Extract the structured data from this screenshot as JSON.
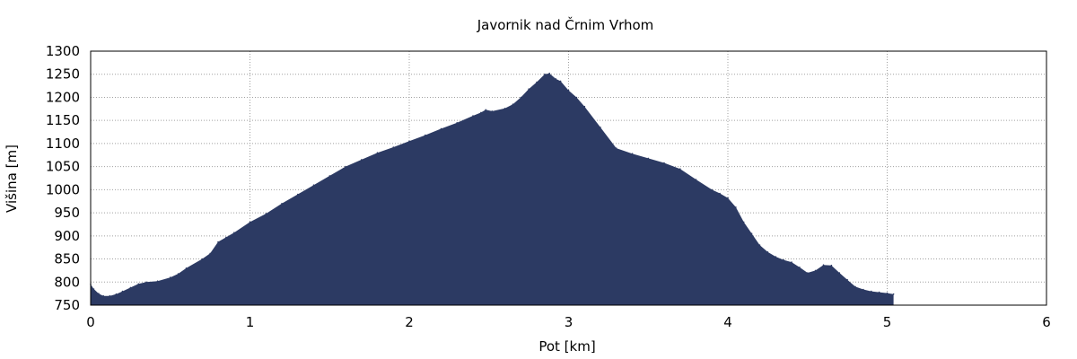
{
  "chart_data": {
    "type": "area",
    "title": "Javornik nad Črnim Vrhom",
    "xlabel": "Pot [km]",
    "ylabel": "Višina [m]",
    "xlim": [
      0,
      6
    ],
    "ylim": [
      750,
      1300
    ],
    "x_ticks": [
      "0",
      "1",
      "2",
      "3",
      "4",
      "5",
      "6"
    ],
    "y_ticks": [
      "750",
      "800",
      "850",
      "900",
      "950",
      "1000",
      "1050",
      "1100",
      "1150",
      "1200",
      "1250",
      "1300"
    ],
    "grid": true,
    "fill_color": "#2c3a63",
    "x": [
      0,
      0.02,
      0.05,
      0.08,
      0.12,
      0.16,
      0.2,
      0.25,
      0.3,
      0.35,
      0.42,
      0.5,
      0.55,
      0.6,
      0.7,
      0.75,
      0.8,
      0.85,
      0.9,
      1.0,
      1.1,
      1.2,
      1.3,
      1.4,
      1.5,
      1.6,
      1.7,
      1.8,
      1.9,
      2.0,
      2.1,
      2.2,
      2.3,
      2.4,
      2.45,
      2.48,
      2.52,
      2.6,
      2.65,
      2.7,
      2.75,
      2.8,
      2.85,
      2.88,
      2.92,
      2.95,
      3.0,
      3.05,
      3.1,
      3.2,
      3.3,
      3.4,
      3.5,
      3.6,
      3.7,
      3.8,
      3.9,
      3.95,
      4.0,
      4.05,
      4.1,
      4.15,
      4.2,
      4.25,
      4.3,
      4.35,
      4.4,
      4.45,
      4.5,
      4.55,
      4.6,
      4.65,
      4.7,
      4.75,
      4.8,
      4.85,
      4.9,
      4.95,
      5.0,
      5.04
    ],
    "y": [
      795,
      785,
      775,
      770,
      770,
      774,
      780,
      788,
      796,
      800,
      802,
      810,
      818,
      830,
      850,
      862,
      887,
      897,
      907,
      930,
      948,
      970,
      990,
      1010,
      1030,
      1050,
      1065,
      1080,
      1092,
      1105,
      1118,
      1132,
      1145,
      1160,
      1167,
      1173,
      1170,
      1176,
      1185,
      1200,
      1218,
      1233,
      1250,
      1252,
      1240,
      1235,
      1215,
      1200,
      1180,
      1135,
      1090,
      1078,
      1068,
      1058,
      1045,
      1022,
      1000,
      992,
      982,
      962,
      930,
      905,
      880,
      865,
      855,
      848,
      843,
      832,
      820,
      825,
      837,
      836,
      820,
      805,
      790,
      784,
      780,
      778,
      776,
      774
    ]
  }
}
